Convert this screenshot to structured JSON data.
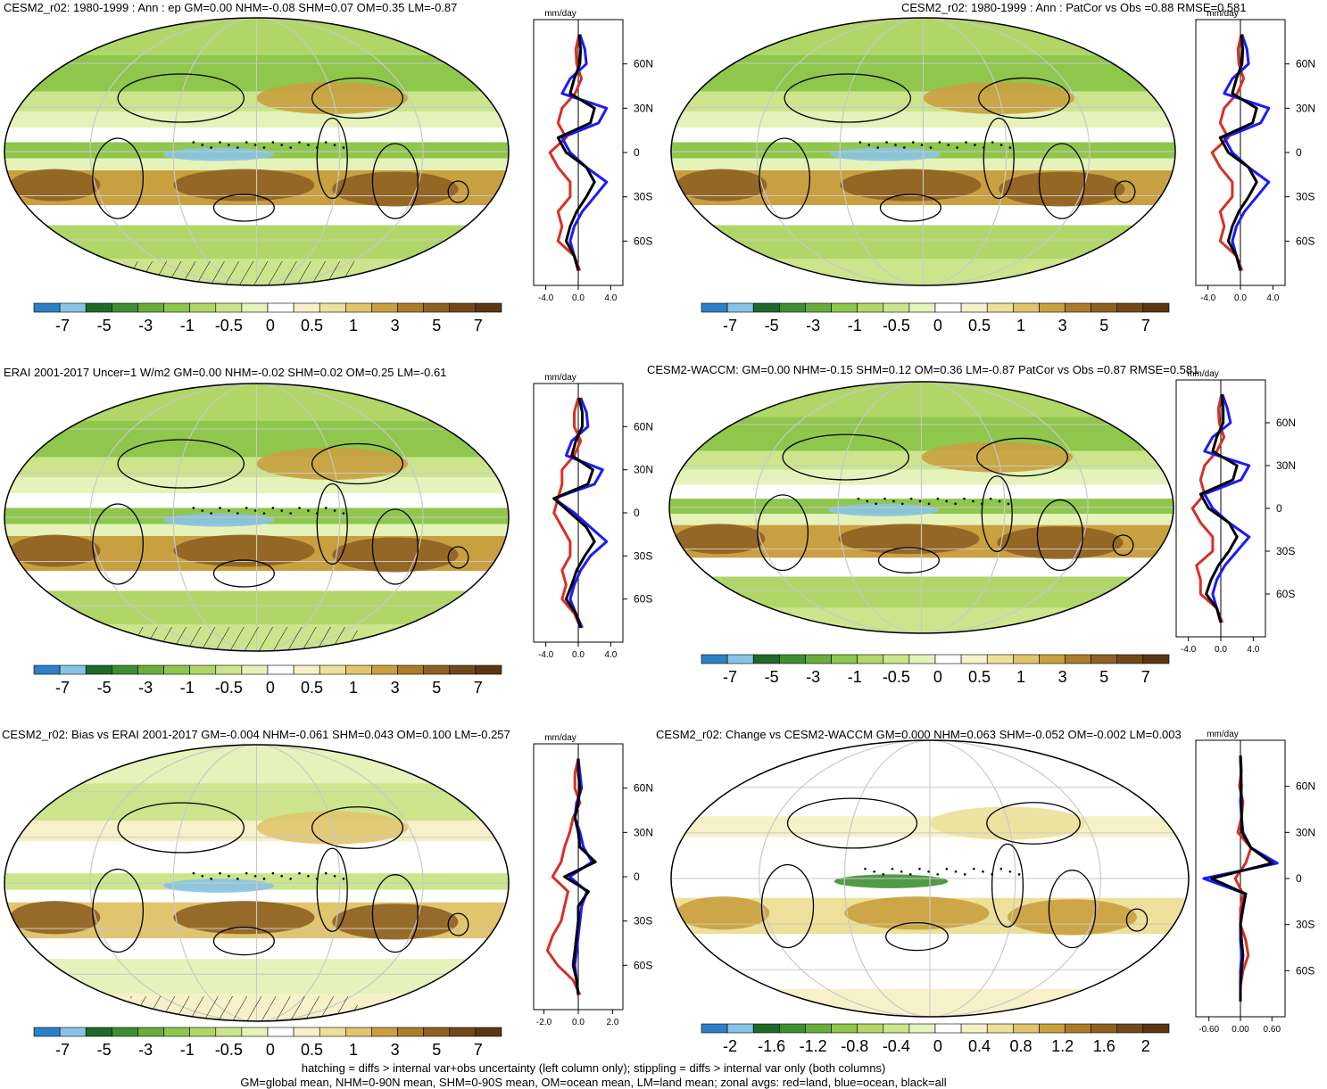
{
  "colors": {
    "cb": [
      "#2d7fc6",
      "#87c3e6",
      "#1e6a2b",
      "#3e8f33",
      "#69ad3c",
      "#8fc64c",
      "#b0d668",
      "#cce58d",
      "#e5f2b9",
      "#ffffff",
      "#f6f1c9",
      "#ede09a",
      "#e0c56e",
      "#c9a03f",
      "#ac7c2a",
      "#8e6122",
      "#72491b",
      "#5a3712"
    ],
    "land": "#d73027",
    "ocean": "#1a1aff",
    "all": "#000000"
  },
  "footer": {
    "line1": "hatching = diffs > internal var+obs uncertainty (left column only); stippling = diffs > internal var only (both columns)",
    "line2": "GM=global mean, NHM=0-90N mean, SHM=0-90S mean, OM=ocean mean, LM=land mean; zonal avgs: red=land, blue=ocean, black=all"
  },
  "chart_data": [
    {
      "type": "heatmap",
      "title": "CESM2_r02: 1980-1999 : Ann : ep GM=0.00 NHM=-0.08 SHM=0.07 OM=0.35 LM=-0.87",
      "colorbar_ticks": [
        "-7",
        "-5",
        "-3",
        "-1",
        "-0.5",
        "0",
        "0.5",
        "1",
        "3",
        "5",
        "7"
      ],
      "hatching": true,
      "stippling": true,
      "zonal": {
        "units": "mm/day",
        "xticks": [
          "-4.0",
          "0.0",
          "4.0"
        ],
        "xlim": [
          -5.5,
          5.5
        ],
        "lat_ticks": [
          "60N",
          "30N",
          "0",
          "30S",
          "60S"
        ],
        "lat": [
          80,
          70,
          60,
          50,
          40,
          30,
          20,
          10,
          0,
          -10,
          -20,
          -30,
          -40,
          -50,
          -60,
          -70,
          -80
        ],
        "land": [
          0.1,
          -0.3,
          -0.2,
          0.4,
          -0.4,
          -2.0,
          -2.5,
          -1.5,
          -3.5,
          -2.5,
          -1.0,
          -1.0,
          -2.5,
          -2.0,
          -2.5,
          -0.5,
          0.2
        ],
        "ocean": [
          0.2,
          0.8,
          1.0,
          -1.0,
          -2.0,
          3.5,
          2.5,
          -2.0,
          -1.0,
          1.0,
          3.5,
          2.0,
          0.5,
          -0.5,
          -1.0,
          -0.5,
          0.0
        ],
        "all": [
          0.1,
          0.3,
          0.2,
          -0.5,
          -1.0,
          2.0,
          1.5,
          -2.5,
          -1.5,
          1.0,
          2.0,
          1.0,
          -0.2,
          -1.0,
          -1.5,
          -0.5,
          0.0
        ]
      }
    },
    {
      "type": "heatmap",
      "title": "CESM2_r02: 1980-1999 : Ann : PatCor vs Obs =0.88 RMSE=0.581",
      "colorbar_ticks": [
        "-7",
        "-5",
        "-3",
        "-1",
        "-0.5",
        "0",
        "0.5",
        "1",
        "3",
        "5",
        "7"
      ],
      "hatching": false,
      "stippling": true,
      "zonal": {
        "units": "mm/day",
        "xticks": [
          "-4.0",
          "0.0",
          "4.0"
        ],
        "xlim": [
          -5.5,
          5.5
        ],
        "lat_ticks": [
          "60N",
          "30N",
          "0",
          "30S",
          "60S"
        ],
        "lat": [
          80,
          70,
          60,
          50,
          40,
          30,
          20,
          10,
          0,
          -10,
          -20,
          -30,
          -40,
          -50,
          -60,
          -70,
          -80
        ],
        "land": [
          0.1,
          -0.3,
          -0.2,
          0.4,
          -0.4,
          -2.0,
          -2.5,
          -1.5,
          -3.5,
          -2.5,
          -1.0,
          -1.0,
          -2.5,
          -2.0,
          -2.5,
          -0.5,
          0.2
        ],
        "ocean": [
          0.2,
          0.8,
          1.0,
          -1.0,
          -2.0,
          3.5,
          2.5,
          -2.0,
          -1.0,
          1.0,
          3.5,
          2.0,
          0.5,
          -0.5,
          -1.0,
          -0.5,
          0.0
        ],
        "all": [
          0.1,
          0.3,
          0.2,
          -0.5,
          -1.0,
          2.0,
          1.5,
          -2.5,
          -1.5,
          1.0,
          2.0,
          1.0,
          -0.2,
          -1.0,
          -1.5,
          -0.5,
          0.0
        ]
      }
    },
    {
      "type": "heatmap",
      "title": "ERAI 2001-2017 Uncer=1 W/m2 GM=0.00 NHM=-0.02 SHM=0.02 OM=0.25 LM=-0.61",
      "colorbar_ticks": [
        "-7",
        "-5",
        "-3",
        "-1",
        "-0.5",
        "0",
        "0.5",
        "1",
        "3",
        "5",
        "7"
      ],
      "hatching": true,
      "stippling": true,
      "zonal": {
        "units": "mm/day",
        "xticks": [
          "-4.0",
          "0.0",
          "4.0"
        ],
        "xlim": [
          -5.5,
          5.5
        ],
        "lat_ticks": [
          "60N",
          "30N",
          "0",
          "30S",
          "60S"
        ],
        "lat": [
          80,
          70,
          60,
          50,
          40,
          30,
          20,
          10,
          0,
          -10,
          -20,
          -30,
          -40,
          -50,
          -60,
          -70,
          -80
        ],
        "land": [
          0.0,
          -0.5,
          -0.5,
          0.3,
          -0.5,
          -2.0,
          -2.0,
          -2.5,
          -3.0,
          -2.0,
          -1.0,
          -1.0,
          -2.0,
          -1.5,
          -2.0,
          -0.5,
          0.3
        ],
        "ocean": [
          0.3,
          1.0,
          1.2,
          -0.8,
          -1.5,
          3.0,
          2.0,
          -3.0,
          -0.5,
          1.5,
          3.5,
          1.5,
          0.3,
          -0.5,
          -1.0,
          -0.3,
          0.5
        ],
        "all": [
          0.1,
          0.5,
          0.5,
          -0.3,
          -0.8,
          1.8,
          1.2,
          -3.0,
          -1.0,
          1.0,
          2.0,
          0.8,
          -0.2,
          -0.8,
          -1.5,
          -0.3,
          0.3
        ]
      }
    },
    {
      "type": "heatmap",
      "title": "CESM2-WACCM: GM=0.00 NHM=-0.15 SHM=0.12 OM=0.36 LM=-0.87 PatCor vs Obs =0.87 RMSE=0.581",
      "colorbar_ticks": [
        "-7",
        "-5",
        "-3",
        "-1",
        "-0.5",
        "0",
        "0.5",
        "1",
        "3",
        "5",
        "7"
      ],
      "hatching": false,
      "stippling": true,
      "zonal": {
        "units": "mm/day",
        "xticks": [
          "-4.0",
          "0.0",
          "4.0"
        ],
        "xlim": [
          -5.5,
          5.5
        ],
        "lat_ticks": [
          "60N",
          "30N",
          "0",
          "30S",
          "60S"
        ],
        "lat": [
          80,
          70,
          60,
          50,
          40,
          30,
          20,
          10,
          0,
          -10,
          -20,
          -30,
          -40,
          -50,
          -60,
          -70,
          -80
        ],
        "land": [
          0.1,
          -0.3,
          -0.2,
          0.4,
          -0.5,
          -2.0,
          -2.5,
          -2.0,
          -3.5,
          -2.5,
          -1.0,
          -1.0,
          -3.0,
          -2.5,
          -2.5,
          -0.5,
          0.2
        ],
        "ocean": [
          0.2,
          0.8,
          1.2,
          -1.0,
          -2.0,
          3.5,
          2.5,
          -2.0,
          -1.0,
          1.0,
          3.5,
          2.0,
          0.5,
          -0.5,
          -1.0,
          -0.5,
          0.0
        ],
        "all": [
          0.1,
          0.3,
          0.3,
          -0.5,
          -1.0,
          2.0,
          1.5,
          -2.5,
          -1.5,
          1.0,
          2.0,
          1.0,
          -0.3,
          -1.2,
          -1.8,
          -0.5,
          0.0
        ]
      }
    },
    {
      "type": "heatmap",
      "title": "CESM2_r02: Bias vs ERAI 2001-2017 GM=-0.004 NHM=-0.061 SHM=0.043 OM=0.100 LM=-0.257",
      "colorbar_ticks": [
        "-7",
        "-5",
        "-3",
        "-1",
        "-0.5",
        "0",
        "0.5",
        "1",
        "3",
        "5",
        "7"
      ],
      "hatching": true,
      "stippling": true,
      "zonal": {
        "units": "mm/day",
        "xticks": [
          "-2.0",
          "0.0",
          "2.0"
        ],
        "xlim": [
          -2.6,
          2.6
        ],
        "lat_ticks": [
          "60N",
          "30N",
          "0",
          "30S",
          "60S"
        ],
        "lat": [
          80,
          70,
          60,
          50,
          40,
          30,
          20,
          10,
          0,
          -10,
          -20,
          -30,
          -40,
          -50,
          -60,
          -70,
          -80
        ],
        "land": [
          0.0,
          -0.2,
          -0.2,
          0.1,
          -0.3,
          -0.5,
          -0.8,
          -1.0,
          -1.5,
          -0.6,
          -0.8,
          -1.0,
          -1.5,
          -1.8,
          -1.2,
          -0.3,
          0.1
        ],
        "ocean": [
          0.0,
          0.1,
          0.2,
          -0.1,
          -0.2,
          0.1,
          0.3,
          0.8,
          -0.5,
          0.5,
          0.2,
          0.1,
          0.0,
          -0.1,
          -0.2,
          -0.1,
          0.0
        ],
        "all": [
          0.0,
          0.0,
          0.1,
          0.0,
          -0.2,
          0.0,
          0.1,
          1.0,
          -0.8,
          0.6,
          0.0,
          0.0,
          -0.1,
          -0.2,
          -0.3,
          -0.1,
          0.0
        ]
      }
    },
    {
      "type": "heatmap",
      "title": "CESM2_r02: Change vs CESM2-WACCM GM=0.000 NHM=0.063 SHM=-0.052 OM=-0.002 LM=0.003",
      "colorbar_ticks": [
        "-2",
        "-1.6",
        "-1.2",
        "-0.8",
        "-0.4",
        "0",
        "0.4",
        "0.8",
        "1.2",
        "1.6",
        "2"
      ],
      "hatching": false,
      "stippling": true,
      "zonal": {
        "units": "mm/day",
        "xticks": [
          "-0.60",
          "0.00",
          "0.60"
        ],
        "xlim": [
          -0.85,
          0.85
        ],
        "lat_ticks": [
          "60N",
          "30N",
          "0",
          "30S",
          "60S"
        ],
        "lat": [
          80,
          70,
          60,
          50,
          40,
          30,
          20,
          10,
          0,
          -10,
          -20,
          -30,
          -40,
          -50,
          -60,
          -70,
          -80
        ],
        "land": [
          0.0,
          0.02,
          -0.02,
          0.05,
          0.02,
          -0.05,
          0.2,
          0.1,
          -0.1,
          0.05,
          0.0,
          0.0,
          0.1,
          0.15,
          0.05,
          0.0,
          0.0
        ],
        "ocean": [
          0.0,
          0.01,
          0.02,
          0.0,
          0.02,
          0.05,
          0.2,
          0.7,
          -0.7,
          0.1,
          0.05,
          0.0,
          0.0,
          0.02,
          0.0,
          0.0,
          0.0
        ],
        "all": [
          0.0,
          0.01,
          0.01,
          0.02,
          0.02,
          0.03,
          0.2,
          0.6,
          -0.55,
          0.1,
          0.04,
          0.0,
          0.02,
          0.05,
          0.02,
          0.0,
          0.0
        ]
      }
    }
  ]
}
